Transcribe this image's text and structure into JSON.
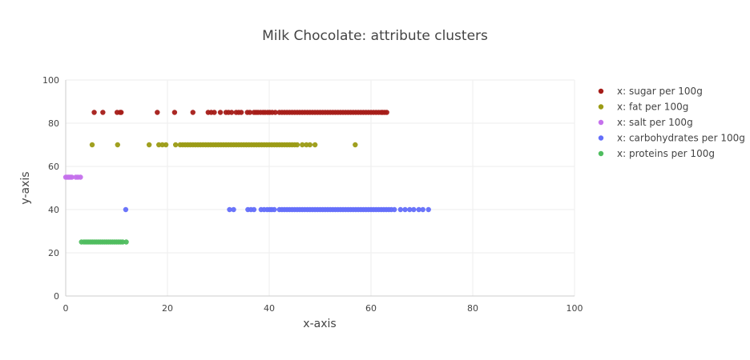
{
  "chart_data": {
    "type": "scatter",
    "title": "Milk Chocolate: attribute clusters",
    "xlabel": "x-axis",
    "ylabel": "y-axis",
    "xlim": [
      0,
      100
    ],
    "ylim": [
      0,
      100
    ],
    "x_ticks": [
      0,
      20,
      40,
      60,
      80,
      100
    ],
    "y_ticks": [
      0,
      20,
      40,
      60,
      80,
      100
    ],
    "grid": true,
    "legend_position": "top-right",
    "series": [
      {
        "name": "x: sugar per 100g",
        "color": "#a51c18",
        "y": 85,
        "x": [
          5.6,
          7.3,
          10.1,
          10.7,
          10.9,
          18,
          21.4,
          25,
          28,
          28.6,
          29.2,
          30.4,
          31.5,
          32,
          32.6,
          33.5,
          34,
          34.5,
          35.7,
          36.2,
          37,
          37.4,
          37.8,
          38.3,
          38.8,
          39.2,
          39.7,
          40.1,
          40.6,
          41.2,
          42,
          42.5,
          43,
          43.5,
          44,
          44.5,
          45,
          45.5,
          46,
          46.5,
          47,
          47.5,
          48,
          48.5,
          49,
          49.5,
          50,
          50.5,
          51,
          51.5,
          52,
          52.5,
          53,
          53.5,
          54,
          54.5,
          55,
          55.5,
          56,
          56.5,
          57,
          57.5,
          58,
          58.5,
          59,
          59.5,
          60,
          60.5,
          61,
          61.5,
          62,
          62.3,
          62.7,
          63.1
        ]
      },
      {
        "name": "x: fat per 100g",
        "color": "#9b9b14",
        "y": 70,
        "x": [
          5.2,
          10.2,
          16.4,
          18.3,
          19,
          19.7,
          21.6,
          22.5,
          23,
          23.5,
          24,
          24.5,
          25,
          25.5,
          26,
          26.5,
          27,
          27.5,
          28,
          28.5,
          29,
          29.5,
          30,
          30.5,
          31,
          31.5,
          32,
          32.5,
          33,
          33.5,
          34,
          34.5,
          35,
          35.5,
          36,
          36.5,
          37,
          37.5,
          38,
          38.5,
          39,
          39.5,
          40,
          40.5,
          41,
          41.5,
          42,
          42.5,
          43,
          43.5,
          44,
          44.5,
          45,
          45.5,
          46.5,
          47.3,
          48,
          49,
          56.9
        ]
      },
      {
        "name": "x: salt per 100g",
        "color": "#c571ec",
        "y": 55,
        "x": [
          0,
          0.3,
          0.6,
          0.9,
          1.2,
          2,
          2.4,
          2.9
        ]
      },
      {
        "name": "x: carbohydrates per 100g",
        "color": "#636efa",
        "y": 40,
        "x": [
          11.8,
          32.2,
          33,
          35.8,
          36.4,
          37,
          38.4,
          39,
          39.6,
          40.1,
          40.5,
          41,
          42,
          42.5,
          43,
          43.5,
          44,
          44.5,
          45,
          45.5,
          46,
          46.5,
          47,
          47.5,
          48,
          48.5,
          49,
          49.5,
          50,
          50.5,
          51,
          51.5,
          52,
          52.5,
          53,
          53.5,
          54,
          54.5,
          55,
          55.5,
          56,
          56.5,
          57,
          57.5,
          58,
          58.5,
          59,
          59.5,
          60,
          60.5,
          61,
          61.5,
          62,
          62.5,
          63,
          63.5,
          64,
          64.6,
          65.8,
          66.7,
          67.6,
          68.4,
          69.4,
          70.2,
          71.3
        ]
      },
      {
        "name": "x: proteins per 100g",
        "color": "#4fbd5f",
        "y": 25,
        "x": [
          3.1,
          3.6,
          4,
          4.4,
          4.8,
          5.2,
          5.6,
          6,
          6.4,
          6.8,
          7.2,
          7.6,
          8,
          8.4,
          8.8,
          9.2,
          9.6,
          10,
          10.4,
          10.8,
          11.2,
          11.9
        ]
      }
    ]
  }
}
